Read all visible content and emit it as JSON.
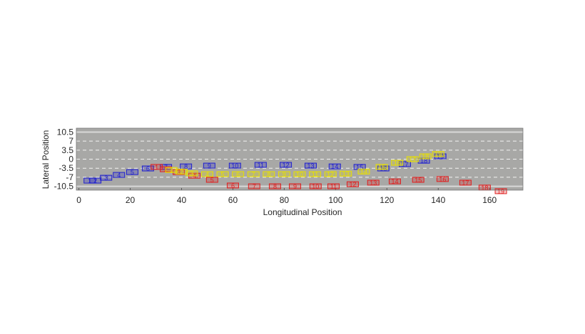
{
  "chart_data": {
    "type": "trajectory",
    "xlabel": "Longitudinal Position",
    "ylabel": "Lateral Position",
    "xlim": [
      -1,
      173
    ],
    "ylim": [
      -12,
      12
    ],
    "xticks": [
      0,
      20,
      40,
      60,
      80,
      100,
      120,
      140,
      160
    ],
    "yticks": [
      10.5,
      7,
      3.5,
      0,
      -3.5,
      -7,
      -10.5
    ],
    "grid": true,
    "background": "#a8a8a6",
    "point_labels": [
      1,
      2,
      3,
      4,
      5,
      6,
      7,
      8,
      9,
      10,
      11,
      12,
      13,
      14,
      15,
      16,
      17,
      18,
      19
    ],
    "series": [
      {
        "color": "#2020d0",
        "x": [
          4.2,
          6.4,
          10.6,
          15.6,
          20.8,
          26.9,
          33.9,
          41.7,
          50.8,
          60.8,
          70.8,
          80.6,
          90.3,
          99.7,
          109.4,
          118.6,
          127.0,
          134.4,
          140.8
        ],
        "values": [
          -8.3,
          -8.3,
          -7.2,
          -6.1,
          -5.0,
          -3.6,
          -3.0,
          -2.8,
          -2.5,
          -2.5,
          -2.2,
          -2.2,
          -2.5,
          -2.8,
          -3.0,
          -3.6,
          -1.9,
          -0.6,
          1.1
        ]
      },
      {
        "color": "#e02020",
        "x": [
          30.3,
          33.9,
          38.9,
          45.0,
          51.9,
          60.0,
          68.3,
          76.4,
          84.2,
          92.2,
          99.2,
          106.7,
          114.7,
          123.1,
          132.2,
          141.7,
          150.6,
          158.1,
          164.4
        ],
        "values": [
          -3.0,
          -3.9,
          -5.0,
          -6.4,
          -8.0,
          -10.2,
          -10.5,
          -10.5,
          -10.5,
          -10.5,
          -10.5,
          -9.7,
          -9.1,
          -8.6,
          -8.0,
          -7.7,
          -9.1,
          -11.0,
          -12.4
        ]
      },
      {
        "color": "#e8e000",
        "x": [
          36,
          40,
          44,
          50,
          56,
          62,
          68,
          74,
          80,
          86,
          92,
          98,
          104,
          111,
          118,
          124,
          130,
          135,
          140
        ],
        "values": [
          -4.2,
          -4.8,
          -5.5,
          -5.8,
          -5.8,
          -5.8,
          -5.8,
          -5.8,
          -5.8,
          -5.8,
          -5.8,
          -5.8,
          -5.6,
          -4.8,
          -3.0,
          -1.4,
          0,
          1.1,
          2.0
        ]
      }
    ]
  }
}
